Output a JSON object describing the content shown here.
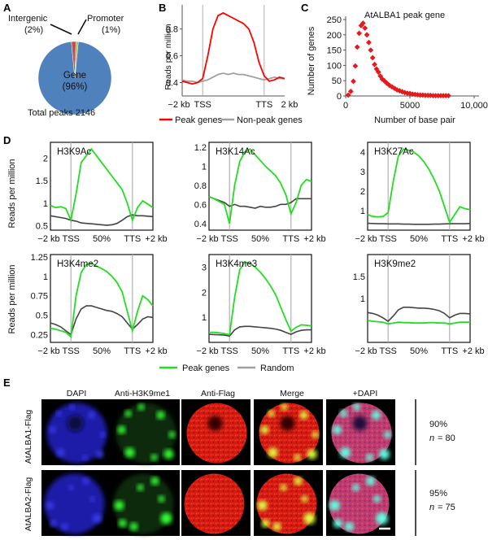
{
  "panels": {
    "A": "A",
    "B": "B",
    "C": "C",
    "D": "D",
    "E": "E"
  },
  "pie": {
    "slices": [
      {
        "label": "Gene",
        "pct": "(96%)",
        "value": 96,
        "color": "#4f81bd"
      },
      {
        "label": "Intergenic",
        "pct": "(2%)",
        "value": 2,
        "color": "#c0504d"
      },
      {
        "label": "Promoter",
        "pct": "(1%)",
        "value": 1,
        "color": "#9bbb59"
      }
    ],
    "caption": "Total peaks 2146"
  },
  "chart_data": [
    {
      "type": "line",
      "panel": "B",
      "ylabel": "Reads per million",
      "yticks": [
        0.4,
        0.6,
        0.8
      ],
      "ylim": [
        0.3,
        0.98
      ],
      "xticks": [
        "−2 kb",
        "TSS",
        "TTS",
        "2 kb"
      ],
      "x": [
        0,
        5,
        10,
        15,
        20,
        25,
        30,
        35,
        40,
        45,
        50,
        55,
        60,
        65,
        70,
        75,
        80,
        85,
        90,
        95,
        100
      ],
      "series": [
        {
          "name": "Peak genes",
          "color": "#ff0000",
          "values": [
            0.41,
            0.4,
            0.39,
            0.4,
            0.43,
            0.6,
            0.8,
            0.9,
            0.92,
            0.9,
            0.88,
            0.86,
            0.84,
            0.8,
            0.7,
            0.55,
            0.45,
            0.41,
            0.42,
            0.44,
            0.43
          ]
        },
        {
          "name": "Non-peak genes",
          "color": "#a0a0a0",
          "values": [
            0.42,
            0.41,
            0.41,
            0.4,
            0.41,
            0.42,
            0.44,
            0.46,
            0.47,
            0.46,
            0.47,
            0.46,
            0.46,
            0.45,
            0.44,
            0.43,
            0.42,
            0.43,
            0.44,
            0.43,
            0.43
          ]
        }
      ]
    },
    {
      "type": "scatter",
      "panel": "C",
      "title": "AtALBA1 peak gene",
      "xlabel": "Number of base pair",
      "ylabel": "Number of genes",
      "xlim": [
        0,
        10000
      ],
      "ylim": [
        0,
        250
      ],
      "xticks": [
        0,
        5000,
        "10,000"
      ],
      "yticks": [
        0,
        50,
        100,
        150,
        200,
        250
      ],
      "color": "#e41a1c",
      "points": [
        [
          200,
          3
        ],
        [
          400,
          15
        ],
        [
          600,
          48
        ],
        [
          750,
          98
        ],
        [
          900,
          160
        ],
        [
          1050,
          205
        ],
        [
          1200,
          230
        ],
        [
          1350,
          238
        ],
        [
          1500,
          222
        ],
        [
          1650,
          200
        ],
        [
          1800,
          175
        ],
        [
          1950,
          150
        ],
        [
          2100,
          125
        ],
        [
          2250,
          103
        ],
        [
          2400,
          88
        ],
        [
          2550,
          78
        ],
        [
          2700,
          65
        ],
        [
          2850,
          55
        ],
        [
          3000,
          50
        ],
        [
          3200,
          42
        ],
        [
          3400,
          35
        ],
        [
          3600,
          30
        ],
        [
          3800,
          25
        ],
        [
          4000,
          20
        ],
        [
          4200,
          17
        ],
        [
          4400,
          14
        ],
        [
          4600,
          11
        ],
        [
          4800,
          9
        ],
        [
          5000,
          8
        ],
        [
          5200,
          6
        ],
        [
          5400,
          5
        ],
        [
          5600,
          4
        ],
        [
          5800,
          3
        ],
        [
          6000,
          3
        ],
        [
          6200,
          2
        ],
        [
          6400,
          2
        ],
        [
          6600,
          2
        ],
        [
          6800,
          1
        ],
        [
          7000,
          1
        ],
        [
          7200,
          1
        ],
        [
          7400,
          1
        ],
        [
          7600,
          1
        ],
        [
          7800,
          1
        ],
        [
          8000,
          1
        ]
      ]
    },
    {
      "type": "line",
      "panel": "D",
      "ylabel": "Reads per million",
      "xticks": [
        "−2 kb",
        "TSS",
        "50%",
        "TTS",
        "+2 kb"
      ],
      "legend": [
        {
          "name": "Peak genes",
          "color": "#22dd22"
        },
        {
          "name": "Random",
          "color": "#a0a0a0"
        }
      ],
      "subplots": [
        {
          "name": "H3K9Ac",
          "yticks": [
            0.5,
            1.0,
            1.5,
            2.0
          ],
          "ylim": [
            0.4,
            2.35
          ],
          "peak": [
            0.95,
            0.9,
            0.92,
            0.88,
            0.62,
            1.2,
            1.9,
            2.05,
            2.2,
            2.05,
            1.9,
            1.75,
            1.6,
            1.45,
            1.3,
            1.0,
            0.62,
            0.9,
            1.05,
            0.98,
            0.9
          ],
          "random": [
            0.72,
            0.7,
            0.68,
            0.66,
            0.62,
            0.6,
            0.56,
            0.55,
            0.54,
            0.53,
            0.52,
            0.51,
            0.52,
            0.55,
            0.62,
            0.7,
            0.74,
            0.72,
            0.72,
            0.71,
            0.7
          ]
        },
        {
          "name": "H3K14Ac",
          "yticks": [
            0.4,
            0.6,
            0.8,
            1.0,
            1.2
          ],
          "ylim": [
            0.33,
            1.25
          ],
          "peak": [
            0.68,
            0.66,
            0.63,
            0.6,
            0.4,
            0.8,
            1.05,
            1.15,
            1.18,
            1.12,
            1.06,
            1.0,
            0.95,
            0.9,
            0.82,
            0.7,
            0.5,
            0.62,
            0.8,
            0.86,
            0.84
          ],
          "random": [
            0.68,
            0.66,
            0.64,
            0.62,
            0.58,
            0.6,
            0.58,
            0.58,
            0.57,
            0.56,
            0.58,
            0.57,
            0.57,
            0.58,
            0.6,
            0.6,
            0.62,
            0.66,
            0.66,
            0.66,
            0.66
          ]
        },
        {
          "name": "H3K27Ac",
          "yticks": [
            1.0,
            2.0,
            3.0,
            4.0
          ],
          "ylim": [
            0.0,
            4.5
          ],
          "peak": [
            0.8,
            0.7,
            0.68,
            0.7,
            0.9,
            2.5,
            3.8,
            4.15,
            4.1,
            4.0,
            3.8,
            3.5,
            3.1,
            2.6,
            2.0,
            1.2,
            0.4,
            0.8,
            1.2,
            1.1,
            1.05
          ],
          "random": [
            0.35,
            0.34,
            0.33,
            0.33,
            0.32,
            0.32,
            0.32,
            0.31,
            0.31,
            0.3,
            0.3,
            0.3,
            0.3,
            0.31,
            0.31,
            0.32,
            0.33,
            0.33,
            0.33,
            0.33,
            0.34
          ]
        },
        {
          "name": "H3K4me2",
          "yticks": [
            0.25,
            0.5,
            0.75,
            1.0,
            1.25
          ],
          "ylim": [
            0.15,
            1.28
          ],
          "peak": [
            0.33,
            0.32,
            0.3,
            0.28,
            0.22,
            0.75,
            1.05,
            1.15,
            1.17,
            1.13,
            1.1,
            1.06,
            1.0,
            0.92,
            0.8,
            0.55,
            0.3,
            0.55,
            0.75,
            0.7,
            0.62
          ],
          "random": [
            0.4,
            0.38,
            0.35,
            0.3,
            0.25,
            0.45,
            0.58,
            0.62,
            0.62,
            0.6,
            0.58,
            0.56,
            0.55,
            0.52,
            0.48,
            0.4,
            0.32,
            0.38,
            0.45,
            0.48,
            0.47
          ]
        },
        {
          "name": "H3K4me3",
          "yticks": [
            1.0,
            2.0,
            3.0
          ],
          "ylim": [
            0.0,
            3.5
          ],
          "peak": [
            0.4,
            0.4,
            0.38,
            0.35,
            0.3,
            1.8,
            2.9,
            3.2,
            3.15,
            3.0,
            2.8,
            2.55,
            2.25,
            1.9,
            1.4,
            0.9,
            0.45,
            0.6,
            0.7,
            0.68,
            0.66
          ],
          "random": [
            0.32,
            0.31,
            0.3,
            0.29,
            0.25,
            0.5,
            0.62,
            0.64,
            0.64,
            0.62,
            0.6,
            0.58,
            0.56,
            0.53,
            0.48,
            0.4,
            0.32,
            0.42,
            0.48,
            0.5,
            0.5
          ]
        },
        {
          "name": "H3K9me2",
          "yticks": [
            1.0,
            1.5
          ],
          "ylim": [
            0.0,
            2.0
          ],
          "peak": [
            0.5,
            0.48,
            0.47,
            0.46,
            0.42,
            0.44,
            0.46,
            0.45,
            0.45,
            0.44,
            0.44,
            0.44,
            0.45,
            0.45,
            0.44,
            0.44,
            0.42,
            0.44,
            0.46,
            0.46,
            0.46
          ],
          "random": [
            0.68,
            0.66,
            0.62,
            0.56,
            0.48,
            0.6,
            0.74,
            0.8,
            0.8,
            0.79,
            0.78,
            0.78,
            0.77,
            0.75,
            0.72,
            0.66,
            0.56,
            0.62,
            0.66,
            0.66,
            0.65
          ]
        }
      ]
    }
  ],
  "microscopy": {
    "columns": [
      "DAPI",
      "Anti-H3K9me1",
      "Anti-Flag",
      "Merge",
      "+DAPI"
    ],
    "rows": [
      {
        "label": "AtALBA1-Flag",
        "pct": "90%",
        "n_label": "n",
        "n_value": "= 80"
      },
      {
        "label": "AtALBA2-Flag",
        "pct": "95%",
        "n_label": "n",
        "n_value": "= 75"
      }
    ]
  },
  "colors": {
    "peak_red": "#ff0000",
    "peak_green": "#22dd22",
    "grey": "#a0a0a0",
    "dark_grey": "#444444",
    "scatter": "#e41a1c"
  }
}
